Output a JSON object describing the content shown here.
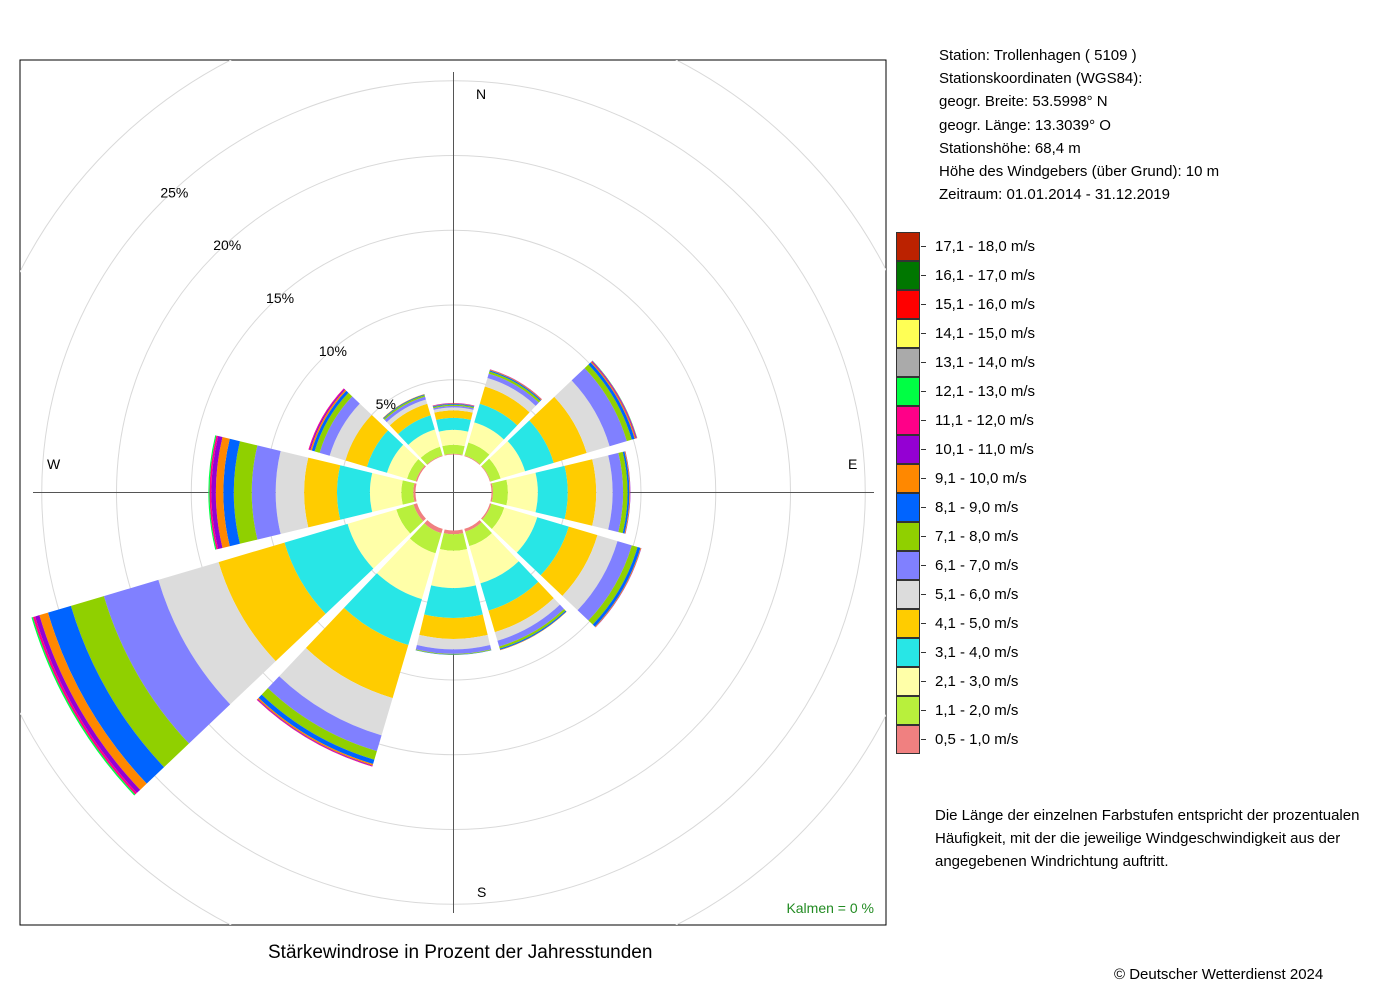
{
  "station_info": {
    "station": "Station:  Trollenhagen  ( 5109 )",
    "coords_title": "Stationskoordinaten (WGS84):",
    "latitude": "geogr. Breite: 53.5998° N",
    "longitude": "geogr. Länge: 13.3039° O",
    "elevation": "Stationshöhe: 68,4 m",
    "sensor_height": "Höhe des Windgebers (über Grund): 10 m",
    "period": "Zeitraum: 01.01.2014 - 31.12.2019"
  },
  "note": "Die Länge der einzelnen Farbstufen entspricht der prozentualen Häufigkeit, mit der die jeweilige Windgeschwindigkeit aus der angegebenen Windrichtung auftritt.",
  "caption": "Stärkewindrose in Prozent der Jahresstunden",
  "copyright": "© Deutscher Wetterdienst  2024",
  "calm_label": "Kalmen  =  0 %",
  "colors": {
    "frame": "#000000",
    "grid": "#d9d9d9",
    "axis": "#555555",
    "calm_text": "#228b22"
  },
  "chart_data": {
    "type": "windrose",
    "title": "Stärkewindrose in Prozent der Jahresstunden",
    "unit": "%",
    "rlim": [
      0,
      25
    ],
    "ring_labels": [
      "5%",
      "10%",
      "15%",
      "20%",
      "25%"
    ],
    "direction_labels": [
      "N",
      "E",
      "S",
      "W"
    ],
    "directions_deg": [
      0,
      30,
      60,
      90,
      120,
      150,
      180,
      210,
      240,
      270,
      300,
      330
    ],
    "calm_percent": 0,
    "speed_classes": [
      {
        "label": "0,5 - 1,0 m/s",
        "color": "#f08080"
      },
      {
        "label": "1,1 - 2,0 m/s",
        "color": "#b8f03c"
      },
      {
        "label": "2,1 - 3,0 m/s",
        "color": "#ffffa8"
      },
      {
        "label": "3,1 - 4,0 m/s",
        "color": "#28e6e6"
      },
      {
        "label": "4,1 - 5,0 m/s",
        "color": "#ffcc00"
      },
      {
        "label": "5,1 - 6,0 m/s",
        "color": "#dcdcdc"
      },
      {
        "label": "6,1 - 7,0 m/s",
        "color": "#8080ff"
      },
      {
        "label": "7,1 - 8,0 m/s",
        "color": "#90d000"
      },
      {
        "label": "8,1 - 9,0 m/s",
        "color": "#0064ff"
      },
      {
        "label": "9,1 - 10,0 m/s",
        "color": "#ff8800"
      },
      {
        "label": "10,1 - 11,0 m/s",
        "color": "#9400d3"
      },
      {
        "label": "11,1 - 12,0 m/s",
        "color": "#ff0088"
      },
      {
        "label": "12,1 - 13,0 m/s",
        "color": "#00ff44"
      },
      {
        "label": "13,1 - 14,0 m/s",
        "color": "#aaaaaa"
      },
      {
        "label": "14,1 - 15,0 m/s",
        "color": "#ffff55"
      },
      {
        "label": "15,1 - 16,0 m/s",
        "color": "#ff0000"
      },
      {
        "label": "16,1 - 17,0 m/s",
        "color": "#007700"
      },
      {
        "label": "17,1 - 18,0 m/s",
        "color": "#bb2200"
      }
    ],
    "series": [
      {
        "direction": "N",
        "deg": 0,
        "values": [
          0.05,
          0.6,
          1.0,
          0.8,
          0.5,
          0.2,
          0.1,
          0.08,
          0.05,
          0.03,
          0.02,
          0.01
        ]
      },
      {
        "direction": "NNE",
        "deg": 30,
        "values": [
          0.05,
          0.9,
          1.4,
          1.3,
          1.2,
          0.6,
          0.3,
          0.15,
          0.08,
          0.05,
          0.02,
          0.01
        ]
      },
      {
        "direction": "ENE",
        "deg": 60,
        "values": [
          0.05,
          0.7,
          1.7,
          2.0,
          2.3,
          1.6,
          1.2,
          0.35,
          0.2,
          0.08,
          0.05,
          0.03,
          0.02
        ]
      },
      {
        "direction": "E",
        "deg": 90,
        "values": [
          0.1,
          1.0,
          2.0,
          2.0,
          1.9,
          1.1,
          0.7,
          0.3,
          0.12,
          0.05,
          0.02
        ]
      },
      {
        "direction": "ESE",
        "deg": 120,
        "values": [
          0.1,
          0.9,
          2.3,
          2.2,
          2.0,
          1.4,
          1.0,
          0.4,
          0.2,
          0.05,
          0.02
        ]
      },
      {
        "direction": "SSE",
        "deg": 150,
        "values": [
          0.2,
          1.0,
          2.6,
          1.9,
          1.5,
          0.6,
          0.4,
          0.15,
          0.08,
          0.03
        ]
      },
      {
        "direction": "S",
        "deg": 180,
        "values": [
          0.25,
          1.1,
          2.5,
          2.0,
          1.4,
          0.7,
          0.3,
          0.05,
          0.02
        ]
      },
      {
        "direction": "SSW",
        "deg": 210,
        "values": [
          0.3,
          1.4,
          3.2,
          3.2,
          3.7,
          2.6,
          1.1,
          0.6,
          0.3,
          0.1,
          0.05,
          0.03
        ]
      },
      {
        "direction": "WSW",
        "deg": 240,
        "values": [
          0.25,
          1.2,
          3.4,
          4.4,
          4.6,
          4.2,
          3.8,
          2.3,
          1.6,
          0.6,
          0.3,
          0.15,
          0.1
        ]
      },
      {
        "direction": "W",
        "deg": 270,
        "values": [
          0.15,
          0.8,
          2.1,
          2.2,
          2.2,
          1.9,
          1.6,
          1.2,
          0.7,
          0.5,
          0.3,
          0.12,
          0.08
        ]
      },
      {
        "direction": "WNW",
        "deg": 300,
        "values": [
          0.1,
          0.6,
          1.4,
          1.4,
          1.5,
          1.1,
          0.7,
          0.35,
          0.2,
          0.1,
          0.08,
          0.05
        ]
      },
      {
        "direction": "NNW",
        "deg": 330,
        "values": [
          0.05,
          0.6,
          1.2,
          1.0,
          0.8,
          0.3,
          0.2,
          0.1,
          0.05,
          0.03
        ]
      }
    ]
  }
}
